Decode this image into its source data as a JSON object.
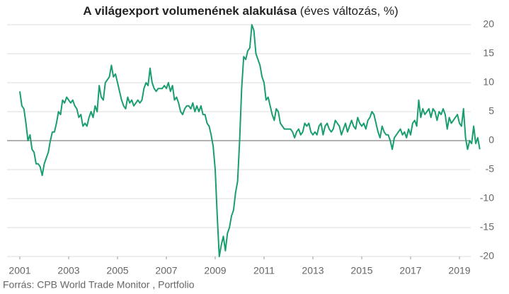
{
  "chart_data": {
    "type": "line",
    "title": "A világexport volumenének alakulása",
    "subtitle": "(éves változás, %)",
    "source": "Forrás: CPB World Trade Monitor , Portfolio",
    "x": [
      2001,
      2001.083,
      2001.167,
      2001.25,
      2001.333,
      2001.417,
      2001.5,
      2001.583,
      2001.667,
      2001.75,
      2001.833,
      2001.917,
      2002,
      2002.083,
      2002.167,
      2002.25,
      2002.333,
      2002.417,
      2002.5,
      2002.583,
      2002.667,
      2002.75,
      2002.833,
      2002.917,
      2003,
      2003.083,
      2003.167,
      2003.25,
      2003.333,
      2003.417,
      2003.5,
      2003.583,
      2003.667,
      2003.75,
      2003.833,
      2003.917,
      2004,
      2004.083,
      2004.167,
      2004.25,
      2004.333,
      2004.417,
      2004.5,
      2004.583,
      2004.667,
      2004.75,
      2004.833,
      2004.917,
      2005,
      2005.083,
      2005.167,
      2005.25,
      2005.333,
      2005.417,
      2005.5,
      2005.583,
      2005.667,
      2005.75,
      2005.833,
      2005.917,
      2006,
      2006.083,
      2006.167,
      2006.25,
      2006.333,
      2006.417,
      2006.5,
      2006.583,
      2006.667,
      2006.75,
      2006.833,
      2006.917,
      2007,
      2007.083,
      2007.167,
      2007.25,
      2007.333,
      2007.417,
      2007.5,
      2007.583,
      2007.667,
      2007.75,
      2007.833,
      2007.917,
      2008,
      2008.083,
      2008.167,
      2008.25,
      2008.333,
      2008.417,
      2008.5,
      2008.583,
      2008.667,
      2008.75,
      2008.833,
      2008.917,
      2009,
      2009.083,
      2009.167,
      2009.25,
      2009.333,
      2009.417,
      2009.5,
      2009.583,
      2009.667,
      2009.75,
      2009.833,
      2009.917,
      2010,
      2010.083,
      2010.167,
      2010.25,
      2010.333,
      2010.417,
      2010.5,
      2010.583,
      2010.667,
      2010.75,
      2010.833,
      2010.917,
      2011,
      2011.083,
      2011.167,
      2011.25,
      2011.333,
      2011.417,
      2011.5,
      2011.583,
      2011.667,
      2011.75,
      2011.833,
      2011.917,
      2012,
      2012.083,
      2012.167,
      2012.25,
      2012.333,
      2012.417,
      2012.5,
      2012.583,
      2012.667,
      2012.75,
      2012.833,
      2012.917,
      2013,
      2013.083,
      2013.167,
      2013.25,
      2013.333,
      2013.417,
      2013.5,
      2013.583,
      2013.667,
      2013.75,
      2013.833,
      2013.917,
      2014,
      2014.083,
      2014.167,
      2014.25,
      2014.333,
      2014.417,
      2014.5,
      2014.583,
      2014.667,
      2014.75,
      2014.833,
      2014.917,
      2015,
      2015.083,
      2015.167,
      2015.25,
      2015.333,
      2015.417,
      2015.5,
      2015.583,
      2015.667,
      2015.75,
      2015.833,
      2015.917,
      2016,
      2016.083,
      2016.167,
      2016.25,
      2016.333,
      2016.417,
      2016.5,
      2016.583,
      2016.667,
      2016.75,
      2016.833,
      2016.917,
      2017,
      2017.083,
      2017.167,
      2017.25,
      2017.333,
      2017.417,
      2017.5,
      2017.583,
      2017.667,
      2017.75,
      2017.833,
      2017.917,
      2018,
      2018.083,
      2018.167,
      2018.25,
      2018.333,
      2018.417,
      2018.5,
      2018.583,
      2018.667,
      2018.75,
      2018.833,
      2018.917,
      2019,
      2019.083,
      2019.167,
      2019.25,
      2019.333,
      2019.417,
      2019.5,
      2019.583,
      2019.667,
      2019.75,
      2019.833
    ],
    "series": [
      {
        "color": "#1a9e6e",
        "values": [
          8.5,
          6,
          5.5,
          3,
          0,
          1,
          -1.5,
          -2,
          -4,
          -4,
          -4.5,
          -6,
          -4,
          -3,
          -2,
          0,
          1.5,
          1.5,
          3,
          5,
          4.5,
          7,
          6.5,
          7.5,
          7,
          6.5,
          7,
          6,
          5.5,
          4,
          4.5,
          2.5,
          3,
          2.5,
          4,
          5,
          4,
          6,
          5,
          9.5,
          7.5,
          7,
          10,
          10.5,
          11,
          13,
          11,
          11.5,
          10,
          8.5,
          7,
          6,
          5.5,
          7.5,
          6.5,
          7,
          6,
          6.5,
          7,
          6.5,
          7,
          9,
          10,
          9.5,
          12.5,
          10,
          9,
          8.5,
          9,
          9,
          9,
          9.5,
          9,
          10,
          8.5,
          9.5,
          7,
          7.5,
          6.5,
          5,
          4.5,
          5.5,
          6,
          6,
          5.5,
          6.5,
          5,
          6,
          5,
          6,
          4.5,
          4.5,
          3,
          2.5,
          1,
          -1,
          -5,
          -13,
          -20,
          -18,
          -16.5,
          -19,
          -16,
          -15,
          -13,
          -12,
          -9,
          -7,
          0,
          9,
          14.5,
          14,
          15.5,
          16,
          20,
          19,
          15,
          14,
          13,
          11,
          10,
          7,
          7.5,
          6,
          4.5,
          3.5,
          5.5,
          5,
          3,
          2.5,
          2,
          2,
          2,
          2,
          1.5,
          0.5,
          1.5,
          2,
          1,
          1.5,
          3,
          2.5,
          3,
          1.5,
          1,
          1.5,
          1,
          2.5,
          3,
          1,
          2.5,
          3,
          2,
          1.5,
          2,
          3.5,
          3,
          2.5,
          1,
          2,
          3,
          1.5,
          2.5,
          3.5,
          2.5,
          2,
          4,
          3,
          2.5,
          3,
          2,
          3.5,
          4,
          5,
          4.5,
          3,
          1.5,
          0.5,
          2.5,
          1.5,
          1,
          1,
          0,
          -1.5,
          0.5,
          1,
          1.5,
          2,
          1,
          1.5,
          0.5,
          2,
          1,
          3,
          3.5,
          2.5,
          7,
          4,
          5.5,
          4.5,
          5,
          5.5,
          4,
          5.5,
          5,
          3.5,
          5,
          4.5,
          5.5,
          4.5,
          2,
          4,
          3,
          3.5,
          4,
          4.5,
          3,
          2.5,
          5.5,
          0.5,
          -1.5,
          0,
          -0.5,
          2.5,
          -0.5,
          0.5,
          -1.5
        ]
      }
    ],
    "xlim": [
      2000.5,
      2019.5
    ],
    "xticks": [
      2001,
      2003,
      2005,
      2007,
      2009,
      2011,
      2013,
      2015,
      2017,
      2019
    ],
    "ylim": [
      -20,
      20
    ],
    "yticks": [
      -20,
      -15,
      -10,
      -5,
      0,
      5,
      10,
      15,
      20
    ],
    "grid": true
  }
}
